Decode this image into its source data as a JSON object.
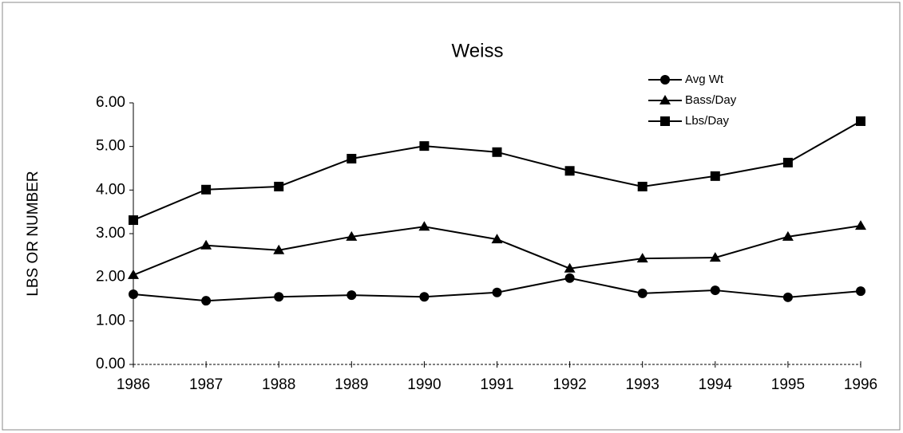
{
  "chart_data": {
    "type": "line",
    "title": "Weiss",
    "y_label": "LBS OR NUMBER",
    "categories": [
      "1986",
      "1987",
      "1988",
      "1989",
      "1990",
      "1991",
      "1992",
      "1993",
      "1994",
      "1995",
      "1996"
    ],
    "series": [
      {
        "name": "Avg Wt",
        "color": "#000000",
        "marker": "circle",
        "values": [
          1.61,
          1.46,
          1.55,
          1.59,
          1.55,
          1.65,
          1.98,
          1.63,
          1.7,
          1.54,
          1.68
        ]
      },
      {
        "name": "Bass/Day",
        "color": "#000000",
        "marker": "triangle",
        "values": [
          2.05,
          2.73,
          2.62,
          2.93,
          3.16,
          2.87,
          2.2,
          2.43,
          2.45,
          2.93,
          3.18
        ]
      },
      {
        "name": "Lbs/Day",
        "color": "#000000",
        "marker": "square",
        "values": [
          3.31,
          4.01,
          4.08,
          4.72,
          5.01,
          4.87,
          4.44,
          4.08,
          4.32,
          4.63,
          5.58
        ]
      }
    ],
    "ylim": [
      0,
      6
    ],
    "yticks": [
      {
        "value": 0,
        "label": "0.00"
      },
      {
        "value": 1,
        "label": "1.00"
      },
      {
        "value": 2,
        "label": "2.00"
      },
      {
        "value": 3,
        "label": "3.00"
      },
      {
        "value": 4,
        "label": "4.00"
      },
      {
        "value": 5,
        "label": "5.00"
      },
      {
        "value": 6,
        "label": "6.00"
      }
    ],
    "grid": false,
    "legend": "upper right"
  }
}
